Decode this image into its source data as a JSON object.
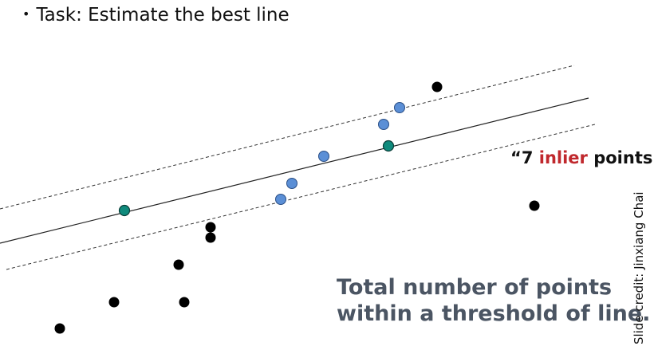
{
  "task": {
    "bullet": "•",
    "text": "Task: Estimate the best line"
  },
  "inlier_label": {
    "open_quote": "“",
    "count": "7",
    "word": "inlier",
    "rest": " points”"
  },
  "summary": {
    "line1": "Total number of points",
    "line2": "within a threshold of line."
  },
  "credit": "Slide credit: Jinxiang Chai",
  "colors": {
    "outlier": "#000000",
    "inlier": "#5b8fd6",
    "sample": "#0f8a7c",
    "highlight": "#c0282d",
    "summary_text": "#4b5563"
  }
}
